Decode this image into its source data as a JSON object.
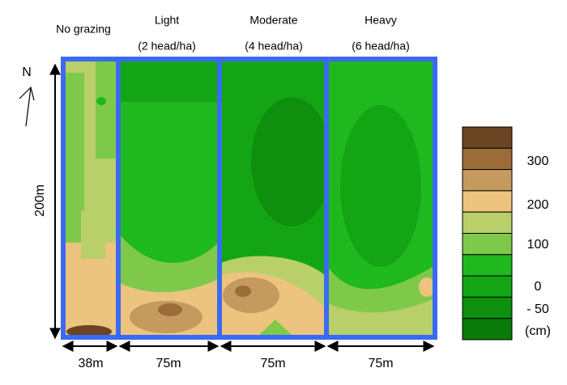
{
  "north": "N",
  "length": "200m",
  "plots": [
    {
      "name": "No grazing",
      "width": "38m"
    },
    {
      "name": "Light",
      "stocking": "(2 head/ha)",
      "width": "75m"
    },
    {
      "name": "Moderate",
      "stocking": "(4 head/ha)",
      "width": "75m"
    },
    {
      "name": "Heavy",
      "stocking": "(6 head/ha)",
      "width": "75m"
    }
  ],
  "legend": {
    "colors": [
      "#6b4423",
      "#9b6b38",
      "#c49a5e",
      "#ecc47f",
      "#b8cf6a",
      "#7fc94a",
      "#1fb81f",
      "#14a514",
      "#0e900e",
      "#0a7a0a"
    ],
    "labels": [
      "300",
      "200",
      "100",
      "0",
      "- 50",
      "(cm)"
    ]
  }
}
